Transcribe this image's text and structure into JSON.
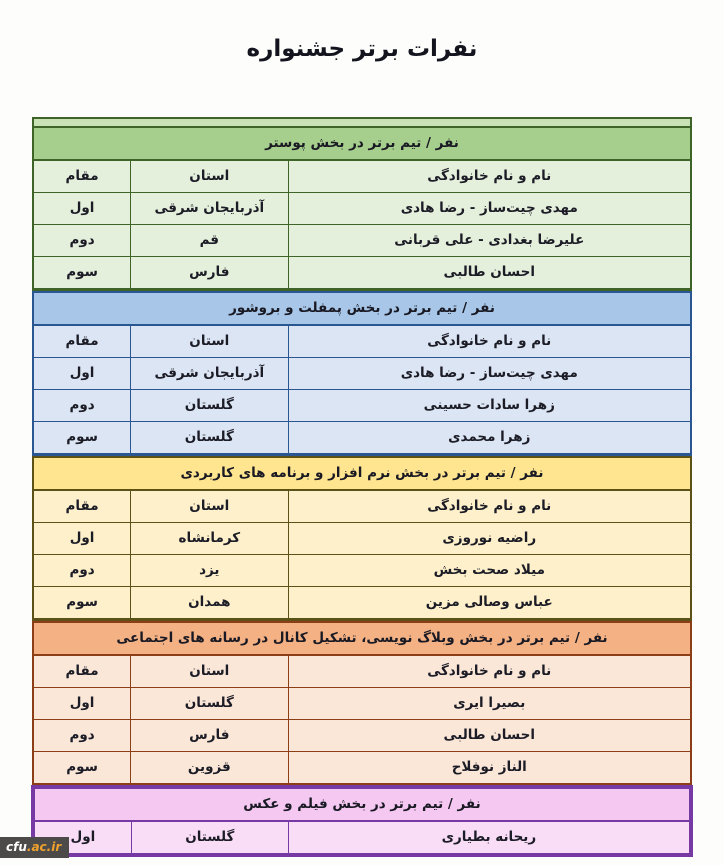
{
  "page_title": "نفرات برتر جشنواره",
  "logo": {
    "prefix": "cfu",
    "suffix": ".ac.ir"
  },
  "columns": {
    "name": "نام و نام خانوادگی",
    "province": "استان",
    "rank": "مقام"
  },
  "sections": [
    {
      "title": "نفر / تیم برتر در بخش پوستر",
      "colors": {
        "border": "#3f6428",
        "header_bg": "#a6cf8d",
        "row_bg": "#e5f0dc",
        "strip": "#c8e2b5"
      },
      "top_strip": true,
      "show_columns": true,
      "rows": [
        {
          "rank": "اول",
          "province": "آذربایجان شرقی",
          "name": "مهدی چیت‌ساز - رضا هادی"
        },
        {
          "rank": "دوم",
          "province": "قم",
          "name": "علیرضا بغدادی - علی قربانی"
        },
        {
          "rank": "سوم",
          "province": "فارس",
          "name": "احسان طالبی"
        }
      ]
    },
    {
      "title": "نفر / تیم برتر در بخش پمفلت و بروشور",
      "colors": {
        "border": "#2a5691",
        "header_bg": "#a7c6e8",
        "row_bg": "#dbe5f3",
        "strip": "#c5d8ee"
      },
      "top_strip": false,
      "show_columns": true,
      "rows": [
        {
          "rank": "اول",
          "province": "آذربایجان شرقی",
          "name": "مهدی چیت‌ساز - رضا هادی"
        },
        {
          "rank": "دوم",
          "province": "گلستان",
          "name": "زهرا سادات حسینی"
        },
        {
          "rank": "سوم",
          "province": "گلستان",
          "name": "زهرا محمدی"
        }
      ]
    },
    {
      "title": "نفر / تیم برتر در بخش نرم افزار و برنامه های کاربردی",
      "colors": {
        "border": "#5c5116",
        "header_bg": "#ffe58f",
        "row_bg": "#fdf0cb",
        "strip": "#ffeeb0"
      },
      "top_strip": false,
      "show_columns": true,
      "rows": [
        {
          "rank": "اول",
          "province": "کرمانشاه",
          "name": "راضیه نوروزی"
        },
        {
          "rank": "دوم",
          "province": "یزد",
          "name": "میلاد صحت بخش"
        },
        {
          "rank": "سوم",
          "province": "همدان",
          "name": "عباس وصالی مزین"
        }
      ]
    },
    {
      "title": "نفر / تیم برتر در بخش وبلاگ نویسی، تشکیل کانال در رسانه های اجتماعی",
      "colors": {
        "border": "#8c3e16",
        "header_bg": "#f3b184",
        "row_bg": "#fbe7d8",
        "strip": "#f7cfb2"
      },
      "top_strip": false,
      "show_columns": true,
      "rows": [
        {
          "rank": "اول",
          "province": "گلستان",
          "name": "بصیرا ایری"
        },
        {
          "rank": "دوم",
          "province": "فارس",
          "name": "احسان طالبی"
        },
        {
          "rank": "سوم",
          "province": "قزوین",
          "name": "الناز نوفلاح"
        }
      ]
    },
    {
      "title": "نفر / تیم برتر در بخش فیلم و عکس",
      "colors": {
        "border": "#7739a3",
        "header_bg": "#f4c8f1",
        "row_bg": "#f9ddf7",
        "strip": "#f6d2f3"
      },
      "top_strip": false,
      "show_columns": false,
      "double_border": true,
      "rows": [
        {
          "rank": "اول",
          "province": "گلستان",
          "name": "ریحانه بطیاری"
        }
      ]
    }
  ]
}
